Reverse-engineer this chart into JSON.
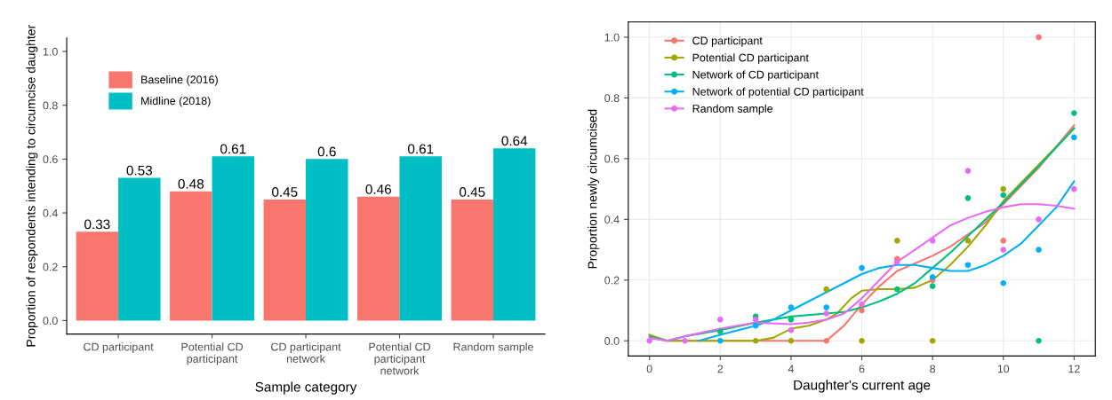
{
  "chart_data": [
    {
      "type": "bar",
      "xlabel": "Sample category",
      "ylabel": "Proportion of respondents intending to circumcise daughter",
      "categories": [
        "CD participant",
        "Potential CD\nparticipant",
        "CD participant\nnetwork",
        "Potential CD\nparticipant\nnetwork",
        "Random sample"
      ],
      "series": [
        {
          "name": "Baseline (2016)",
          "color": "#f8766d",
          "values": [
            0.33,
            0.48,
            0.45,
            0.46,
            0.45
          ]
        },
        {
          "name": "Midline (2018)",
          "color": "#00bfc4",
          "values": [
            0.53,
            0.61,
            0.6,
            0.61,
            0.64
          ]
        }
      ],
      "ylim": [
        -0.05,
        1.05
      ],
      "yticks": [
        {
          "value": 0,
          "label": "0.0"
        },
        {
          "value": 0.2,
          "label": "0.2"
        },
        {
          "value": 0.4,
          "label": "0.4"
        },
        {
          "value": 0.6,
          "label": "0.6"
        },
        {
          "value": 0.8,
          "label": "0.8"
        },
        {
          "value": 1,
          "label": "1.0"
        }
      ],
      "data_labels": true,
      "legend": "top left",
      "grid": false
    },
    {
      "type": "scatter",
      "xlabel": "Daughter's current age",
      "ylabel": "Proportion newly circumcised",
      "series": [
        {
          "name": "CD participant",
          "color": "#f8766d",
          "x": [
            5,
            6,
            7,
            8,
            10,
            11
          ],
          "values": [
            0,
            0.1,
            0.27,
            0.2,
            0.33,
            1.0
          ]
        },
        {
          "name": "Potential CD participant",
          "color": "#a3a500",
          "x": [
            3,
            4,
            5,
            6,
            7,
            8,
            9,
            10
          ],
          "values": [
            0,
            0,
            0.17,
            0,
            0.33,
            0,
            0.33,
            0.5
          ]
        },
        {
          "name": "Network of CD participant",
          "color": "#00bf7d",
          "x": [
            2,
            3,
            4,
            7,
            8,
            9,
            10,
            11,
            12
          ],
          "values": [
            0.03,
            0.08,
            0.07,
            0.17,
            0.18,
            0.47,
            0.48,
            0,
            0.75
          ]
        },
        {
          "name": "Network of potential CD participant",
          "color": "#00b0f6",
          "x": [
            2,
            3,
            4,
            5,
            6,
            8,
            9,
            10,
            11,
            12
          ],
          "values": [
            0,
            0.05,
            0.11,
            0.11,
            0.24,
            0.21,
            0.25,
            0.19,
            0.3,
            0.67
          ]
        },
        {
          "name": "Random sample",
          "color": "#e76bf3",
          "x": [
            0,
            1,
            2,
            3,
            4,
            5,
            6,
            7,
            8,
            9,
            10,
            11,
            12
          ],
          "values": [
            0,
            0,
            0.07,
            0.07,
            0.035,
            0.09,
            0.12,
            0.26,
            0.33,
            0.56,
            0.3,
            0.4,
            0.5
          ]
        },
        {
          "type": "line",
          "marker": "none",
          "color": "#f8766d",
          "x": [
            0,
            0.5,
            1,
            2,
            3,
            4,
            5,
            5.5,
            6,
            6.5,
            7,
            7.5,
            8,
            8.5,
            9,
            9.5,
            10,
            11,
            12
          ],
          "values": [
            0.01,
            0,
            0,
            0,
            0,
            0,
            0,
            0.05,
            0.12,
            0.18,
            0.23,
            0.255,
            0.28,
            0.31,
            0.35,
            0.39,
            0.45,
            0.57,
            0.71
          ]
        },
        {
          "type": "line",
          "marker": "none",
          "color": "#a3a500",
          "x": [
            0,
            0.5,
            1,
            2,
            3,
            3.5,
            4,
            4.5,
            5,
            5.3,
            5.7,
            6,
            6.5,
            7,
            7.5,
            8,
            8.5,
            9,
            9.5,
            10,
            11,
            12
          ],
          "values": [
            0.02,
            0,
            0,
            0,
            0,
            0.01,
            0.04,
            0.05,
            0.07,
            0.09,
            0.14,
            0.165,
            0.17,
            0.17,
            0.175,
            0.2,
            0.25,
            0.31,
            0.38,
            0.46,
            0.58,
            0.7
          ]
        },
        {
          "type": "line",
          "marker": "none",
          "color": "#00bf7d",
          "x": [
            0,
            0.5,
            1,
            2,
            3,
            4,
            5,
            5.5,
            6,
            6.5,
            7,
            7.5,
            8,
            8.5,
            9,
            9.5,
            10,
            11,
            12
          ],
          "values": [
            0.015,
            0,
            0.015,
            0.035,
            0.06,
            0.08,
            0.09,
            0.095,
            0.11,
            0.13,
            0.155,
            0.19,
            0.24,
            0.29,
            0.345,
            0.4,
            0.455,
            0.575,
            0.7
          ]
        },
        {
          "type": "line",
          "marker": "none",
          "color": "#00b0f6",
          "x": [
            1.4,
            2,
            3,
            3.5,
            4,
            4.5,
            5,
            5.5,
            6,
            6.5,
            7,
            7.5,
            8,
            8.5,
            9,
            9.5,
            10,
            10.5,
            11,
            11.5,
            12
          ],
          "values": [
            0,
            0.02,
            0.05,
            0.07,
            0.1,
            0.13,
            0.16,
            0.19,
            0.22,
            0.24,
            0.25,
            0.25,
            0.24,
            0.23,
            0.23,
            0.25,
            0.28,
            0.32,
            0.38,
            0.44,
            0.525
          ]
        },
        {
          "type": "line",
          "marker": "none",
          "color": "#e76bf3",
          "x": [
            0,
            0.5,
            1,
            2,
            3,
            4,
            4.5,
            5,
            5.5,
            6,
            6.5,
            7,
            7.5,
            8,
            8.5,
            9,
            9.5,
            10,
            10.5,
            11,
            11.5,
            12
          ],
          "values": [
            0.01,
            0,
            0.015,
            0.04,
            0.06,
            0.055,
            0.06,
            0.07,
            0.09,
            0.14,
            0.2,
            0.26,
            0.3,
            0.34,
            0.38,
            0.405,
            0.425,
            0.44,
            0.45,
            0.45,
            0.445,
            0.435
          ]
        }
      ],
      "xlim": [
        -0.6,
        12.6
      ],
      "ylim": [
        -0.05,
        1.05
      ],
      "xticks": [
        0,
        2,
        4,
        6,
        8,
        10,
        12
      ],
      "yticks": [
        {
          "value": 0,
          "label": "0.0"
        },
        {
          "value": 0.2,
          "label": "0.2"
        },
        {
          "value": 0.4,
          "label": "0.4"
        },
        {
          "value": 0.6,
          "label": "0.6"
        },
        {
          "value": 0.8,
          "label": "0.8"
        },
        {
          "value": 1,
          "label": "1.0"
        }
      ],
      "marker": "circle",
      "grid": true,
      "legend": "top left"
    }
  ]
}
